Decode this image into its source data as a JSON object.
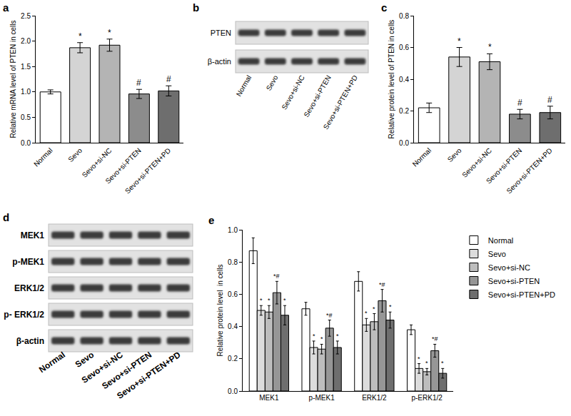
{
  "chart_data": [
    {
      "type": "bar",
      "panel_label": "a",
      "ylabel": "Relative mRNA level of PTEN in cells",
      "categories": [
        "Normal",
        "Sevo",
        "Sevo+si-NC",
        "Sevo+si-PTEN",
        "Sevo+si-PTEN+PD"
      ],
      "values": [
        1.0,
        1.87,
        1.92,
        0.96,
        1.02
      ],
      "errors": [
        0.04,
        0.1,
        0.12,
        0.09,
        0.1
      ],
      "significance": [
        null,
        "*",
        "*",
        "#",
        "#"
      ],
      "colors": [
        "#ffffff",
        "#d4d4d4",
        "#b4b4b4",
        "#8c8c8c",
        "#6e6e6e"
      ],
      "ylim": [
        0,
        2.5
      ],
      "yticks": [
        {
          "value": 0,
          "label": "0.0"
        },
        0.5,
        {
          "value": 1,
          "label": "1.0"
        },
        1.5,
        {
          "value": 2,
          "label": "2.0"
        },
        2.5
      ],
      "grid": false
    },
    {
      "type": "bar",
      "panel_label": "c",
      "ylabel": "Relative protein level of PTEN in cells",
      "categories": [
        "Normal",
        "Sevo",
        "Sevo+si-NC",
        "Sevo+si-PTEN",
        "Sevo+si-PTEN+PD"
      ],
      "values": [
        0.22,
        0.54,
        0.51,
        0.18,
        0.19
      ],
      "errors": [
        0.03,
        0.06,
        0.05,
        0.03,
        0.04
      ],
      "significance": [
        null,
        "*",
        "*",
        "#",
        "#"
      ],
      "colors": [
        "#ffffff",
        "#d4d4d4",
        "#b4b4b4",
        "#8c8c8c",
        "#6e6e6e"
      ],
      "ylim": [
        0,
        0.8
      ],
      "yticks": [
        {
          "value": 0,
          "label": "0.0"
        },
        0.2,
        0.4,
        0.6,
        0.8
      ],
      "grid": false
    },
    {
      "type": "bar",
      "panel_label": "e",
      "ylabel": "Relative protein level  in cells",
      "categories": [
        "MEK1",
        "p-MEK1",
        "ERK1/2",
        "p-ERK1/2"
      ],
      "series": [
        {
          "name": "Normal",
          "color": "#ffffff",
          "values": [
            0.87,
            0.51,
            0.68,
            0.38
          ],
          "errors": [
            0.08,
            0.04,
            0.06,
            0.03
          ],
          "significance": [
            null,
            null,
            null,
            null
          ]
        },
        {
          "name": "Sevo",
          "color": "#dcdcdc",
          "values": [
            0.5,
            0.27,
            0.41,
            0.14
          ],
          "errors": [
            0.03,
            0.04,
            0.04,
            0.03
          ],
          "significance": [
            "*",
            "*",
            "*",
            "*"
          ]
        },
        {
          "name": "Sevo+si-NC",
          "color": "#bdbdbd",
          "values": [
            0.49,
            0.26,
            0.43,
            0.12
          ],
          "errors": [
            0.04,
            0.03,
            0.05,
            0.02
          ],
          "significance": [
            "*",
            "*",
            "*",
            "*"
          ]
        },
        {
          "name": "Sevo+si-PTEN",
          "color": "#969696",
          "values": [
            0.61,
            0.39,
            0.56,
            0.25
          ],
          "errors": [
            0.07,
            0.05,
            0.07,
            0.04
          ],
          "significance": [
            "*#",
            "*#",
            "*#",
            "*#"
          ]
        },
        {
          "name": "Sevo+si-PTEN+PD",
          "color": "#6e6e6e",
          "values": [
            0.47,
            0.27,
            0.44,
            0.11
          ],
          "errors": [
            0.06,
            0.04,
            0.05,
            0.03
          ],
          "significance": [
            "*",
            "*",
            "*",
            "*"
          ]
        }
      ],
      "ylim": [
        0,
        1.0
      ],
      "yticks": [
        {
          "value": 0,
          "label": "0.0"
        },
        0.2,
        0.4,
        0.6,
        0.8,
        {
          "value": 1,
          "label": "1.0"
        }
      ],
      "legend": "upper right",
      "grid": false
    }
  ],
  "blots": [
    {
      "panel_label": "b",
      "rows": [
        "PTEN",
        "β-actin"
      ],
      "lanes": [
        "Normal",
        "Sevo",
        "Sevo+si-NC",
        "Sevo+si-PTEN",
        "Sevo+si-PTEN+PD"
      ]
    },
    {
      "panel_label": "d",
      "rows": [
        "MEK1",
        "p-MEK1",
        "ERK1/2",
        "p- ERK1/2",
        "β-actin"
      ],
      "lanes": [
        "Normal",
        "Sevo",
        "Sevo+si-NC",
        "Sevo+si-PTEN",
        "Sevo+si-PTEN+PD"
      ]
    }
  ]
}
